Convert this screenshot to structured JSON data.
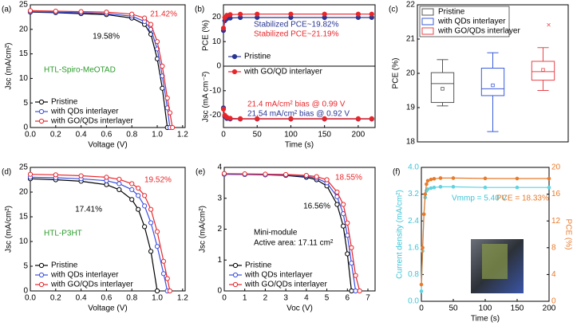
{
  "chart_data": [
    {
      "type": "line",
      "panel_label": "(a)",
      "x_label": "Voltage (V)",
      "y_label": "Jsc (mA/cm²)",
      "x": [
        0,
        0.2,
        0.4,
        0.6,
        0.8,
        0.9,
        0.95,
        1.0,
        1.04,
        1.08,
        1.1,
        1.12
      ],
      "series": [
        {
          "name": "Pristine",
          "color": "#000000",
          "values": [
            23.5,
            23.4,
            23.2,
            23.0,
            22.3,
            21.0,
            19.0,
            14.0,
            8.0,
            0,
            null,
            null
          ]
        },
        {
          "name": "with QDs interlayer",
          "color": "#3a4fe0",
          "values": [
            23.6,
            23.5,
            23.4,
            23.2,
            22.7,
            21.6,
            20.0,
            16.0,
            10.5,
            4.0,
            0,
            null
          ]
        },
        {
          "name": "with GO/QDs interlayer",
          "color": "#e8262a",
          "values": [
            23.8,
            23.7,
            23.6,
            23.5,
            23.1,
            22.3,
            21.0,
            17.5,
            12.5,
            6.0,
            3,
            0
          ]
        }
      ],
      "xlim": [
        0,
        1.22
      ],
      "xticks": [
        {
          "value": 0,
          "label": "0.0"
        },
        0.2,
        0.4,
        0.6,
        0.8,
        {
          "value": 1,
          "label": "1.0"
        },
        1.2
      ],
      "ylim": [
        0,
        25
      ],
      "yticks": [
        0,
        5,
        10,
        15,
        20,
        25
      ],
      "markers": "open",
      "legend": "lower left",
      "annotations": [
        {
          "text": "19.58%",
          "color": "#000000"
        },
        {
          "text": "21.42%",
          "color": "#e8262a"
        },
        {
          "text": "HTL-Spiro-MeOTAD",
          "color": "#2a9a2a"
        }
      ]
    },
    {
      "type": "line",
      "panel_label": "(b)",
      "x_label": "Time (s)",
      "y_label_upper": "PCE (%)",
      "y_label_lower": "Jsc (mA cm⁻²)",
      "x": [
        0,
        2,
        5,
        10,
        25,
        50,
        100,
        150,
        200,
        220
      ],
      "series": [
        {
          "name": "Pristine",
          "color": "#283593",
          "values": [
            14.5,
            18.5,
            19.3,
            19.6,
            19.8,
            19.82,
            19.82,
            19.8,
            19.82,
            19.82
          ],
          "jsc_values": [
            -17,
            -20.5,
            -21.3,
            -21.5,
            -21.54,
            -21.54,
            -21.54,
            -21.54,
            -21.54,
            -21.54
          ]
        },
        {
          "name": "with GO/QD interlayer",
          "color": "#e8262a",
          "values": [
            15.5,
            19.8,
            20.7,
            21.0,
            21.15,
            21.19,
            21.19,
            21.2,
            21.19,
            21.19
          ],
          "jsc_values": [
            -17.5,
            -20.0,
            -20.8,
            -21.2,
            -21.4,
            -21.4,
            -21.4,
            -21.4,
            -21.4,
            -21.4
          ]
        }
      ],
      "xlim": [
        0,
        225
      ],
      "xticks": [
        0,
        50,
        100,
        150,
        200
      ],
      "ylim": [
        -25,
        25
      ],
      "yticks": [
        -20,
        -10,
        0,
        10,
        20
      ],
      "markers": "filled",
      "legend": "center left",
      "zero_line": true,
      "annotations": [
        {
          "text": "Stabilized PCE~19.82%",
          "color": "#283593"
        },
        {
          "text": "Stabilized PCE~21.19%",
          "color": "#e8262a"
        },
        {
          "text": "21.4 mA/cm² bias @ 0.99 V",
          "color": "#e8262a"
        },
        {
          "text": "21.54 mA/cm² bias @ 0.92 V",
          "color": "#283593"
        }
      ]
    },
    {
      "type": "box",
      "panel_label": "(c)",
      "y_label": "PCE (%)",
      "series": [
        {
          "name": "Pristine",
          "color": "#555555",
          "min": 19.05,
          "q1": 19.15,
          "median": 19.7,
          "q3": 20.02,
          "max": 20.4,
          "mean": 19.55
        },
        {
          "name": "with QDs interlayer",
          "color": "#3b5bdb",
          "min": 18.3,
          "q1": 19.35,
          "median": 19.55,
          "q3": 20.15,
          "max": 20.6,
          "mean": 19.65
        },
        {
          "name": "with GO/QDs interlayer",
          "color": "#e8444a",
          "min": 19.5,
          "q1": 19.8,
          "median": 20.05,
          "q3": 20.35,
          "max": 20.75,
          "mean": 20.1,
          "outliers": [
            21.4
          ]
        }
      ],
      "ylim": [
        18,
        22
      ],
      "yticks": [
        18,
        19,
        20,
        21,
        22
      ],
      "legend": "upper left"
    },
    {
      "type": "line",
      "panel_label": "(d)",
      "x_label": "Voltage (V)",
      "y_label": "Jsc (mA/cm²)",
      "x": [
        0,
        0.2,
        0.4,
        0.6,
        0.7,
        0.8,
        0.85,
        0.9,
        0.95,
        1.0,
        1.05,
        1.08,
        1.1
      ],
      "series": [
        {
          "name": "Pristine",
          "color": "#000000",
          "values": [
            22.7,
            22.5,
            22.2,
            21.5,
            20.5,
            18.5,
            16.5,
            13,
            8,
            0,
            null,
            null,
            null
          ]
        },
        {
          "name": "with QDs interlayer",
          "color": "#3a4fe0",
          "values": [
            23.0,
            22.9,
            22.7,
            22.3,
            21.7,
            20.5,
            19.3,
            17.2,
            13.8,
            9,
            3.5,
            0,
            null
          ]
        },
        {
          "name": "with GO/QDs interlayer",
          "color": "#e8262a",
          "values": [
            23.6,
            23.5,
            23.3,
            23.0,
            22.6,
            21.7,
            20.8,
            19.3,
            16.5,
            12,
            6,
            2.5,
            0
          ]
        }
      ],
      "xlim": [
        0,
        1.22
      ],
      "xticks": [
        {
          "value": 0,
          "label": "0.0"
        },
        0.2,
        0.4,
        0.6,
        0.8,
        {
          "value": 1,
          "label": "1.0"
        },
        1.2
      ],
      "ylim": [
        0,
        25
      ],
      "yticks": [
        0,
        5,
        10,
        15,
        20,
        25
      ],
      "markers": "open",
      "legend": "lower left",
      "annotations": [
        {
          "text": "17.41%",
          "color": "#000000"
        },
        {
          "text": "19.52%",
          "color": "#e8262a"
        },
        {
          "text": "HTL-P3HT",
          "color": "#2a9a2a"
        }
      ]
    },
    {
      "type": "line",
      "panel_label": "(e)",
      "x_label": "Voc (V)",
      "y_label": "Jsc (mA/cm²)",
      "x": [
        0,
        1,
        2,
        3,
        4,
        4.5,
        5,
        5.5,
        5.8,
        6.0,
        6.2,
        6.4,
        6.6
      ],
      "series": [
        {
          "name": "Pristine",
          "color": "#000000",
          "values": [
            3.78,
            3.77,
            3.76,
            3.74,
            3.68,
            3.6,
            3.4,
            2.8,
            2.1,
            1.2,
            0,
            null,
            null
          ]
        },
        {
          "name": "with QDs interlayer",
          "color": "#3a4fe0",
          "values": [
            3.78,
            3.77,
            3.76,
            3.75,
            3.71,
            3.65,
            3.5,
            3.05,
            2.5,
            1.8,
            0.9,
            0,
            null
          ]
        },
        {
          "name": "with GO/QDs interlayer",
          "color": "#e8262a",
          "values": [
            3.8,
            3.79,
            3.78,
            3.77,
            3.74,
            3.7,
            3.6,
            3.2,
            2.8,
            2.2,
            1.4,
            0.5,
            0
          ]
        }
      ],
      "xlim": [
        0,
        7.35
      ],
      "xticks": [
        0,
        1,
        2,
        3,
        4,
        5,
        6,
        7
      ],
      "ylim": [
        0,
        4
      ],
      "yticks": [
        0,
        1,
        2,
        3,
        4
      ],
      "markers": "open",
      "legend": "lower left",
      "annotations": [
        {
          "text": "16.56%",
          "color": "#000000"
        },
        {
          "text": "18.55%",
          "color": "#e8262a"
        },
        {
          "text": "Mini-module",
          "color": "#000000"
        },
        {
          "text": "Active area: 17.11 cm²",
          "color": "#000000"
        }
      ]
    },
    {
      "type": "line",
      "panel_label": "(f)",
      "x_label": "Time (s)",
      "y_label": "Current density (mA/cm²)",
      "y2_label": "PCE (%)",
      "x": [
        0,
        2,
        4,
        6,
        8,
        10,
        15,
        20,
        30,
        50,
        100,
        150,
        200
      ],
      "series": [
        {
          "color": "#5fd3e0",
          "values": [
            0.3,
            1.5,
            2.6,
            3.1,
            3.3,
            3.35,
            3.38,
            3.4,
            3.42,
            3.42,
            3.4,
            3.4,
            3.4
          ]
        },
        {
          "color": "#e87a2a",
          "axis": "y2",
          "values": [
            2.5,
            8,
            13,
            16,
            17.5,
            18,
            18.2,
            18.3,
            18.4,
            18.4,
            18.35,
            18.33,
            18.33
          ]
        }
      ],
      "xlim": [
        0,
        200
      ],
      "xticks": [
        0,
        50,
        100,
        150,
        200
      ],
      "ylim": [
        0,
        4
      ],
      "yticks": [
        {
          "value": 0,
          "label": "0.0"
        },
        0.8,
        1.6,
        2.4,
        3.2,
        {
          "value": 4,
          "label": "4.0"
        }
      ],
      "y_color": "#3cc4d6",
      "y2lim": [
        0,
        20
      ],
      "y2ticks": [
        0,
        4,
        8,
        12,
        16,
        20
      ],
      "y2_color": "#e87a2a",
      "markers": "small",
      "annotations": [
        {
          "text": "Vmmp = 5.40 V",
          "color": "#3cc4d6"
        },
        {
          "text": "PCE = 18.33%",
          "color": "#e87a2a"
        }
      ]
    }
  ]
}
